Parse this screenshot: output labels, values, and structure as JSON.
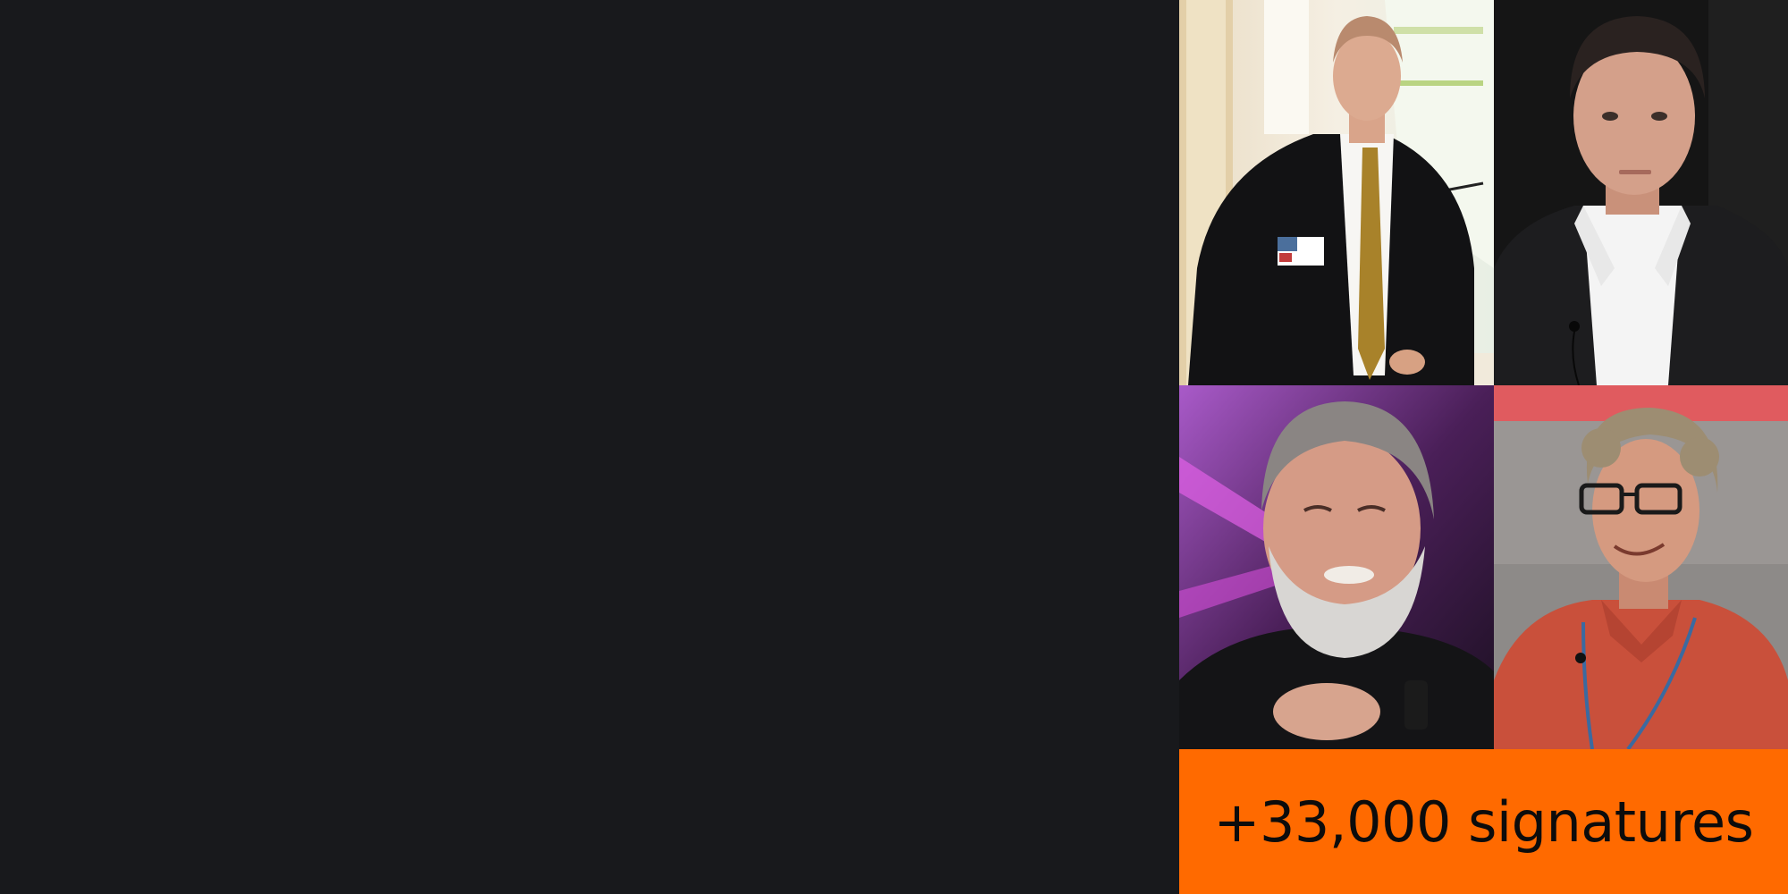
{
  "banner": {
    "signature_count": "+33,000 signatures",
    "background_color": "#ff6a00",
    "text_color": "#0c0c0c"
  },
  "background_color": "#18191c",
  "photos": [
    {
      "description_name": "speaker-at-podium-photo"
    },
    {
      "description_name": "man-dark-background-photo"
    },
    {
      "description_name": "man-grey-beard-photo"
    },
    {
      "description_name": "man-glasses-red-shirt-photo"
    }
  ]
}
